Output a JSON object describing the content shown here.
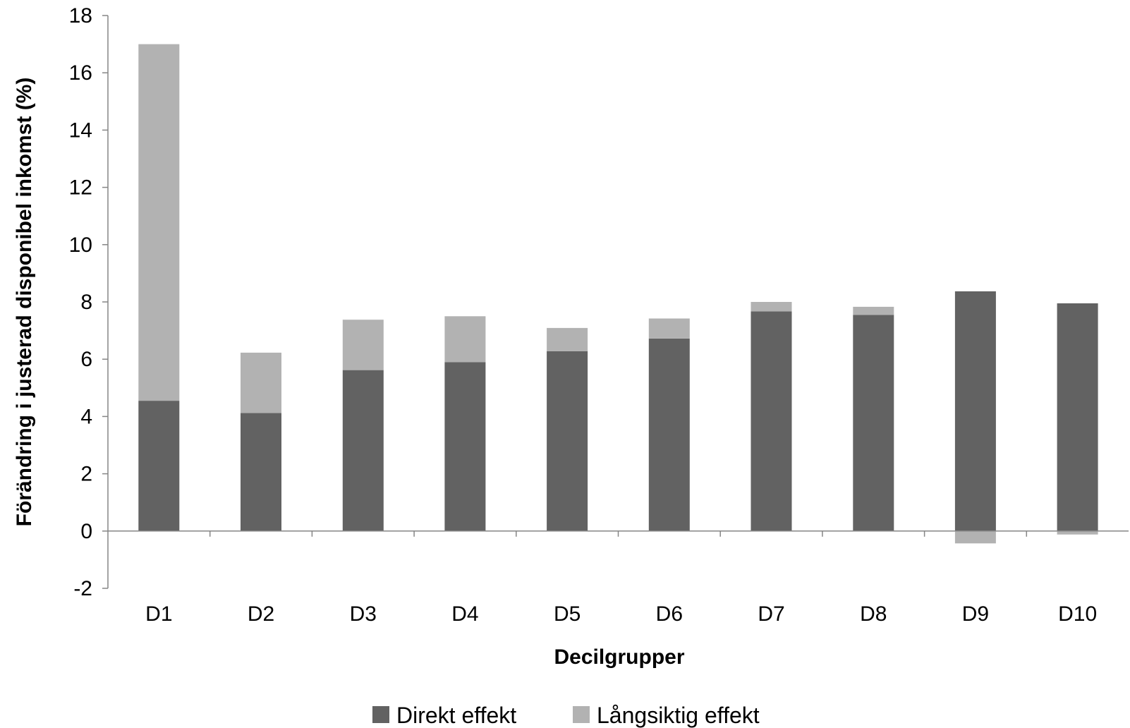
{
  "chart_data": {
    "type": "bar",
    "stacked": true,
    "categories": [
      "D1",
      "D2",
      "D3",
      "D4",
      "D5",
      "D6",
      "D7",
      "D8",
      "D9",
      "D10"
    ],
    "series": [
      {
        "name": "Direkt effekt",
        "color": "#626262",
        "values": [
          4.55,
          4.12,
          5.62,
          5.9,
          6.28,
          6.72,
          7.67,
          7.55,
          8.37,
          7.95
        ]
      },
      {
        "name": "Långsiktig effekt",
        "color": "#b2b2b2",
        "values": [
          12.45,
          2.11,
          1.76,
          1.6,
          0.81,
          0.7,
          0.33,
          0.28,
          -0.43,
          -0.12
        ]
      }
    ],
    "title": "",
    "xlabel": "Decilgrupper",
    "ylabel": "Förändring i justerad disponibel inkomst (%)",
    "ylim": [
      -2,
      18
    ],
    "yticks": [
      -2,
      0,
      2,
      4,
      6,
      8,
      10,
      12,
      14,
      16,
      18
    ],
    "grid": false,
    "legend_position": "bottom"
  }
}
